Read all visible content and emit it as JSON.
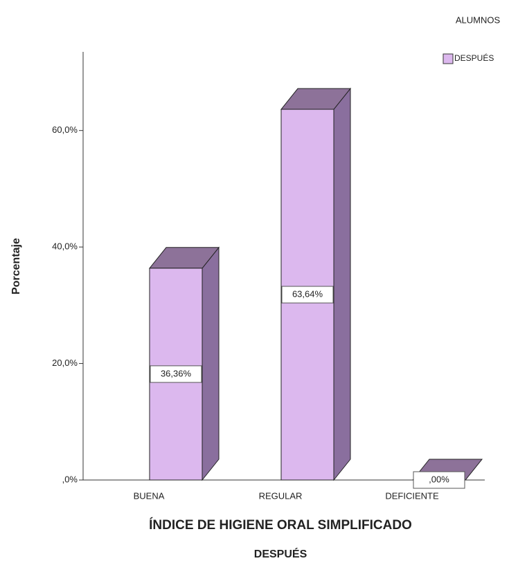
{
  "chart_data": {
    "type": "bar3d",
    "legend_title": "ALUMNOS",
    "series": [
      {
        "name": "DESPUÉS",
        "color": "#dcb8ee",
        "values": [
          36.36,
          63.64,
          0
        ],
        "value_labels": [
          "36,36%",
          "63,64%",
          ",00%"
        ]
      }
    ],
    "categories": [
      "BUENA",
      "REGULAR",
      "DEFICIENTE"
    ],
    "xlabel": "ÍNDICE DE HIGIENE ORAL SIMPLIFICADO",
    "subtitle": "DESPUÉS",
    "ylabel": "Porcentaje",
    "ylim": [
      0,
      73.5
    ],
    "yticks": [
      {
        "value": 0,
        "label": ",0%"
      },
      {
        "value": 20,
        "label": "20,0%"
      },
      {
        "value": 40,
        "label": "40,0%"
      },
      {
        "value": 60,
        "label": "60,0%"
      }
    ],
    "legend": "top-right"
  }
}
